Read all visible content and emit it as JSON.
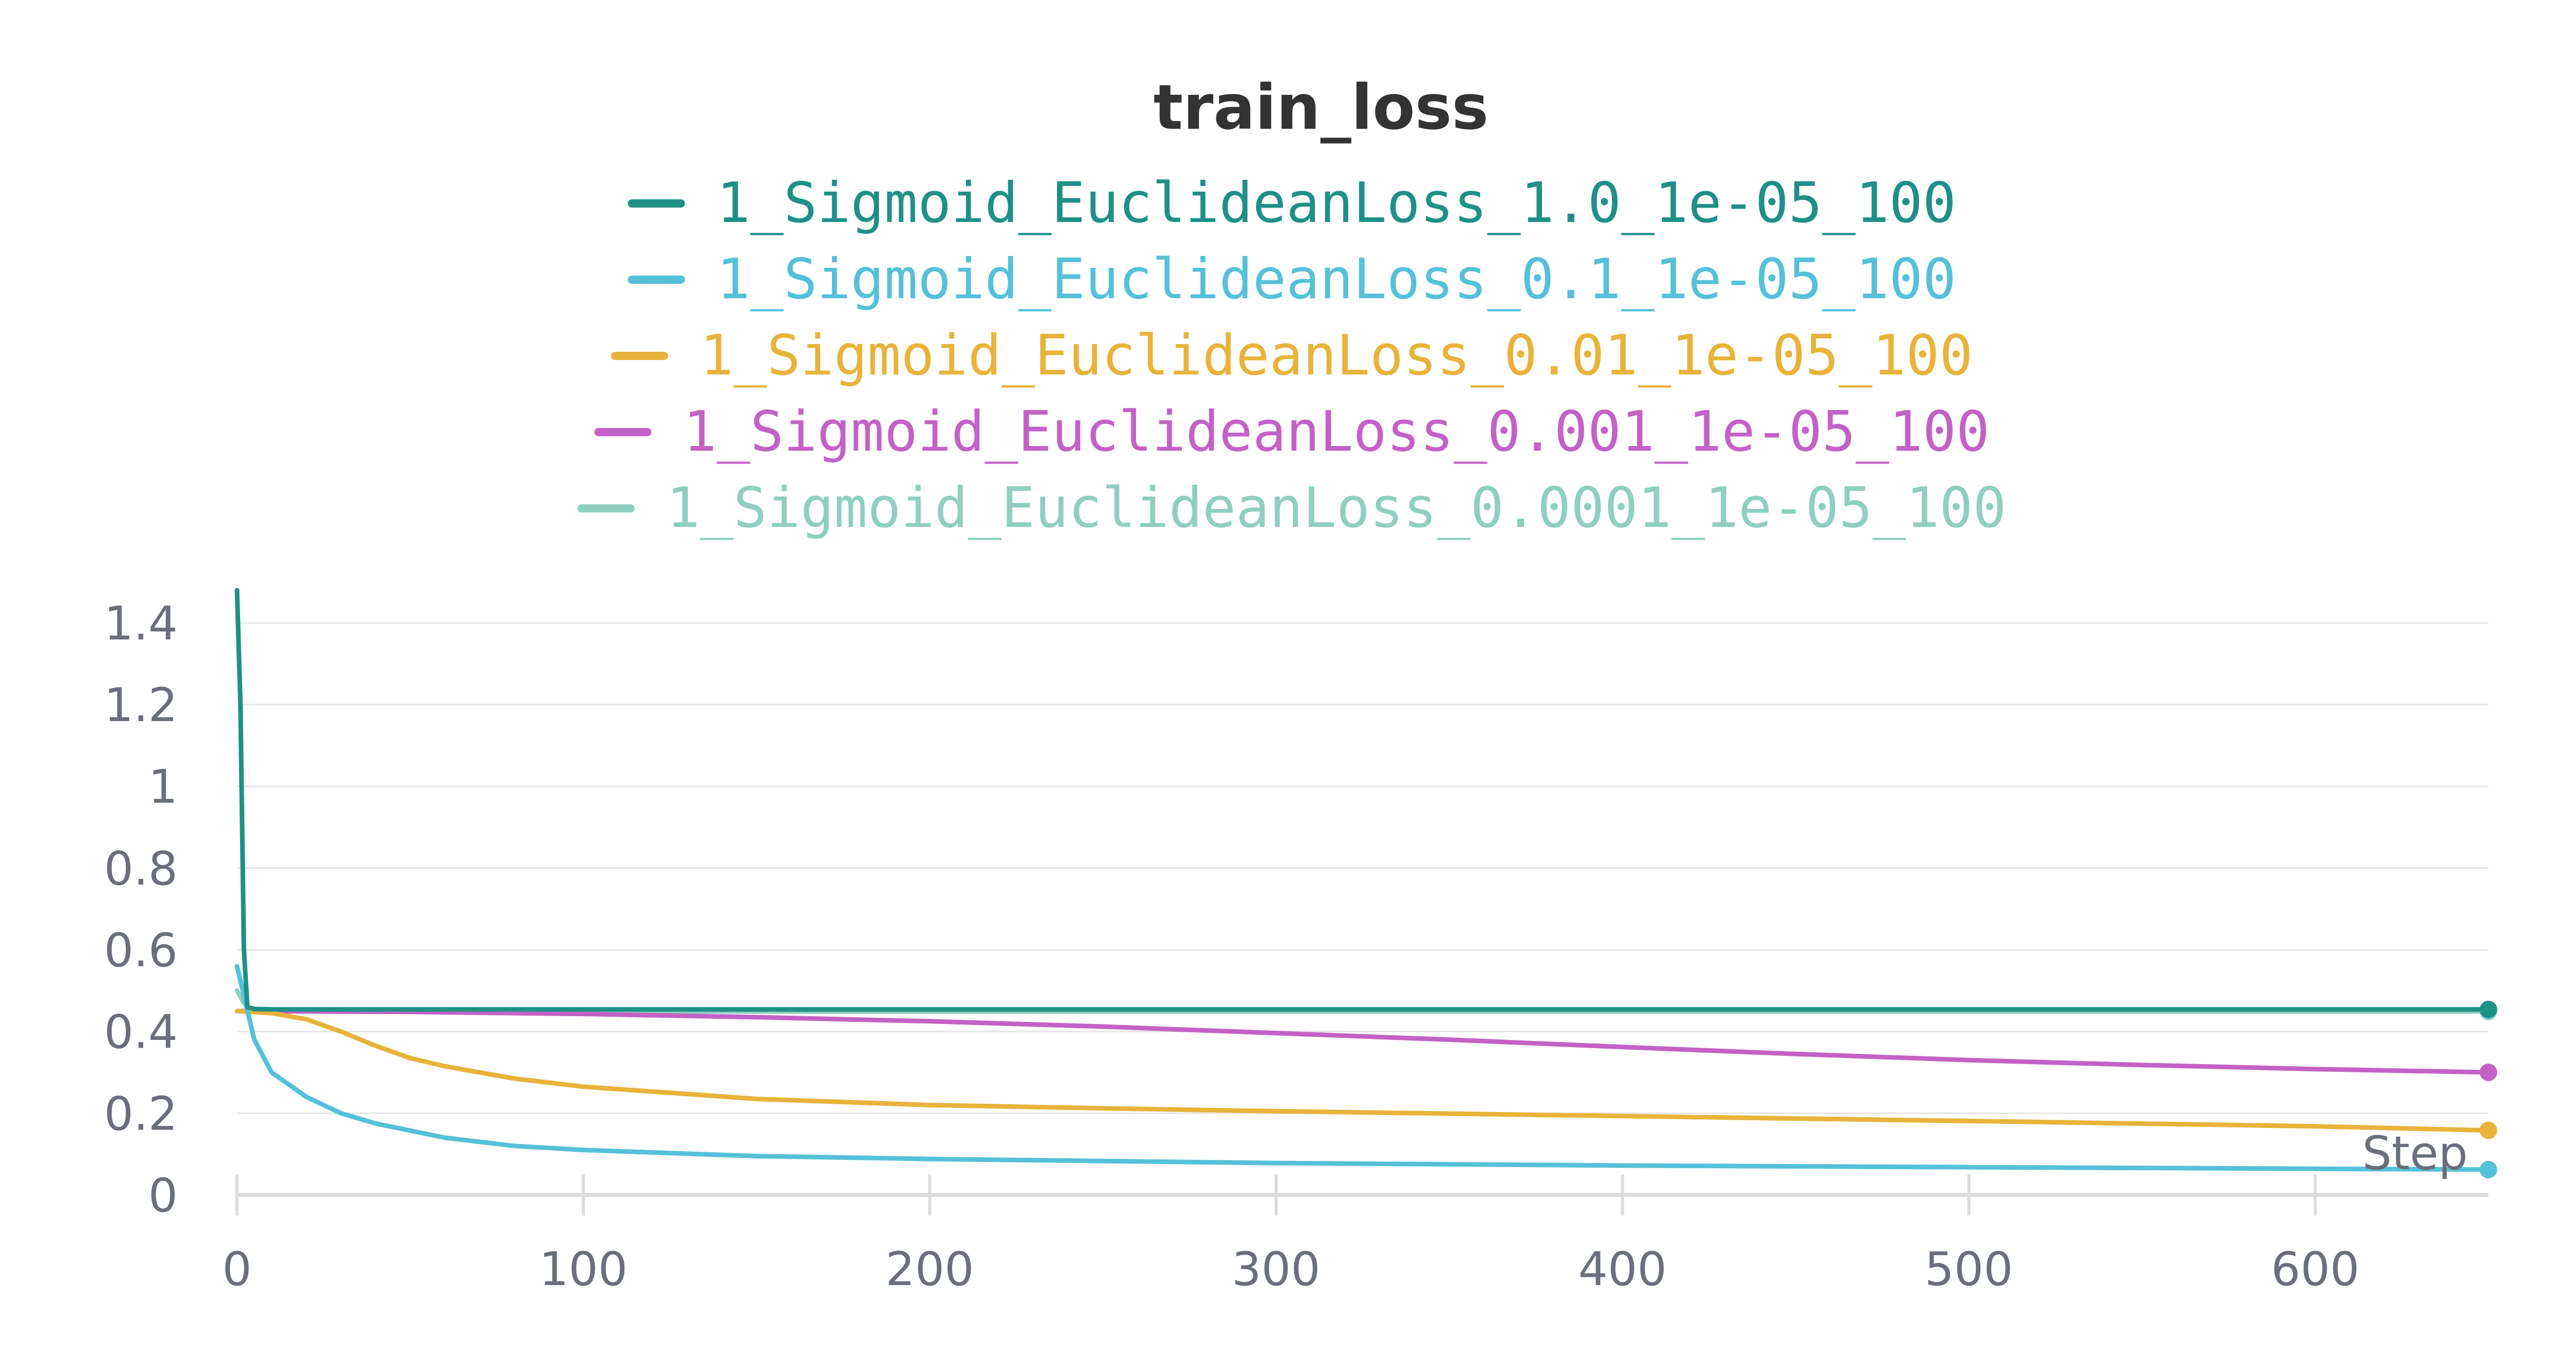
{
  "chart_data": {
    "type": "line",
    "title": "train_loss",
    "xlabel": "Step",
    "ylabel": "",
    "xlim": [
      0,
      650
    ],
    "ylim": [
      0,
      1.5
    ],
    "x_ticks": [
      "0",
      "100",
      "200",
      "300",
      "400",
      "500",
      "600"
    ],
    "y_ticks": [
      "0",
      "0.2",
      "0.4",
      "0.6",
      "0.8",
      "1",
      "1.2",
      "1.4"
    ],
    "x_tick_values": [
      0,
      100,
      200,
      300,
      400,
      500,
      600
    ],
    "y_tick_values": [
      0,
      0.2,
      0.4,
      0.6,
      0.8,
      1.0,
      1.2,
      1.4
    ],
    "grid": true,
    "legend_position": "top-center",
    "series": [
      {
        "name": "1_Sigmoid_EuclideanLoss_1.0_1e-05_100",
        "color": "#1f9086",
        "x": [
          0,
          1,
          2,
          3,
          5,
          10,
          50,
          100,
          200,
          300,
          400,
          500,
          600,
          650
        ],
        "y": [
          1.48,
          1.2,
          0.6,
          0.46,
          0.455,
          0.454,
          0.454,
          0.454,
          0.454,
          0.454,
          0.454,
          0.454,
          0.454,
          0.454
        ]
      },
      {
        "name": "1_Sigmoid_EuclideanLoss_0.1_1e-05_100",
        "color": "#55c1d9",
        "x": [
          0,
          5,
          10,
          20,
          30,
          40,
          60,
          80,
          100,
          150,
          200,
          300,
          400,
          500,
          600,
          650
        ],
        "y": [
          0.56,
          0.38,
          0.3,
          0.24,
          0.2,
          0.175,
          0.14,
          0.12,
          0.11,
          0.095,
          0.088,
          0.078,
          0.072,
          0.068,
          0.064,
          0.062
        ]
      },
      {
        "name": "1_Sigmoid_EuclideanLoss_0.01_1e-05_100",
        "color": "#e8b33a",
        "x": [
          0,
          10,
          20,
          30,
          40,
          50,
          60,
          80,
          100,
          150,
          200,
          250,
          300,
          400,
          500,
          600,
          650
        ],
        "y": [
          0.45,
          0.445,
          0.43,
          0.4,
          0.365,
          0.335,
          0.315,
          0.285,
          0.265,
          0.235,
          0.22,
          0.212,
          0.205,
          0.193,
          0.181,
          0.168,
          0.158
        ]
      },
      {
        "name": "1_Sigmoid_EuclideanLoss_0.001_1e-05_100",
        "color": "#c362c6",
        "x": [
          0,
          50,
          100,
          150,
          200,
          250,
          300,
          350,
          400,
          450,
          500,
          550,
          600,
          650
        ],
        "y": [
          0.45,
          0.448,
          0.443,
          0.435,
          0.425,
          0.412,
          0.396,
          0.38,
          0.362,
          0.345,
          0.33,
          0.318,
          0.308,
          0.3
        ]
      },
      {
        "name": "1_Sigmoid_EuclideanLoss_0.0001_1e-05_100",
        "color": "#8fcfc0",
        "x": [
          0,
          2,
          4,
          10,
          100,
          200,
          300,
          400,
          500,
          600,
          650
        ],
        "y": [
          0.5,
          0.47,
          0.452,
          0.45,
          0.449,
          0.449,
          0.449,
          0.449,
          0.449,
          0.449,
          0.449
        ]
      }
    ]
  }
}
